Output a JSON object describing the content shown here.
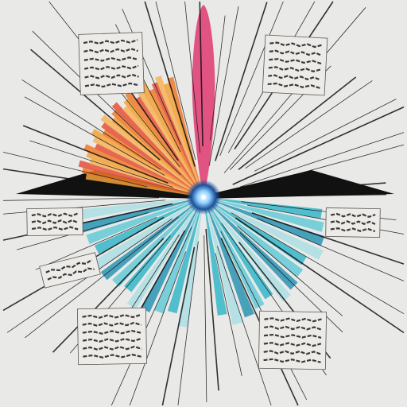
{
  "colors": {
    "background": "#e9e9e7",
    "warm_rays": [
      "#f2a23a",
      "#f07a2c",
      "#e4503a",
      "#f6b45c"
    ],
    "cool_rays": [
      "#2bb3c7",
      "#5cc8d6",
      "#1f8fb0",
      "#a7dde4"
    ],
    "spike": "#e0457a",
    "ink": "#111111",
    "card_fill": "#ecebe7",
    "card_text": "#3a3a3a",
    "core_glow": "#8fd3ff"
  },
  "cards": [
    {
      "name": "card-top-left",
      "lines": 6
    },
    {
      "name": "card-top-right",
      "lines": 6
    },
    {
      "name": "card-mid-left",
      "lines": 3
    },
    {
      "name": "card-mid-right",
      "lines": 3
    },
    {
      "name": "card-lower-left",
      "lines": 2
    },
    {
      "name": "card-bottom-left",
      "lines": 6
    },
    {
      "name": "card-bottom-right",
      "lines": 6
    }
  ]
}
